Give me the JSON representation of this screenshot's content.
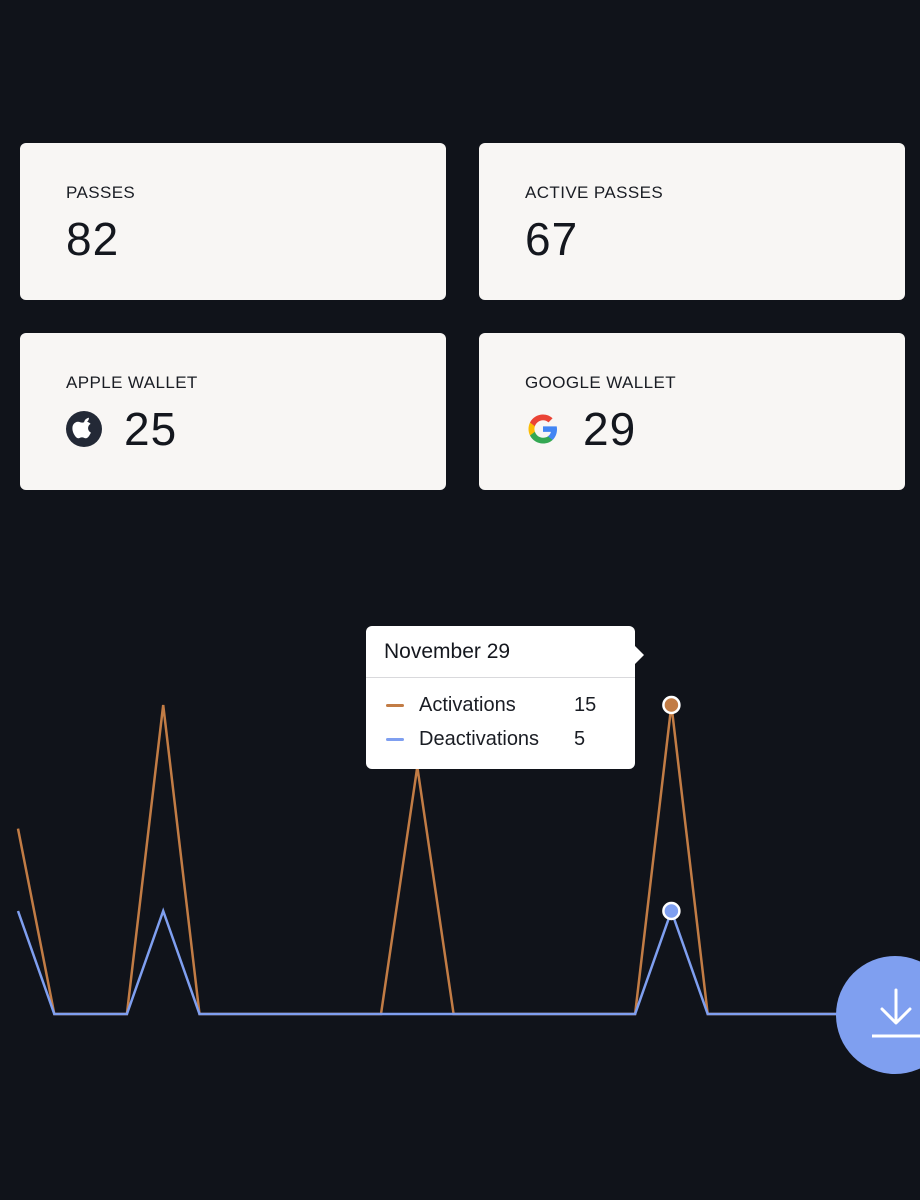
{
  "stats": {
    "passes": {
      "label": "PASSES",
      "value": "82"
    },
    "active_passes": {
      "label": "ACTIVE PASSES",
      "value": "67"
    },
    "apple_wallet": {
      "label": "APPLE WALLET",
      "value": "25",
      "icon": "apple-icon"
    },
    "google_wallet": {
      "label": "GOOGLE WALLET",
      "value": "29",
      "icon": "google-icon"
    }
  },
  "tooltip": {
    "date": "November 29",
    "rows": [
      {
        "label": "Activations",
        "value": "15",
        "color": "#c27c45"
      },
      {
        "label": "Deactivations",
        "value": "5",
        "color": "#7f9ff0"
      }
    ]
  },
  "chart_data": {
    "type": "line",
    "title": "",
    "xlabel": "",
    "ylabel": "",
    "x": [
      0,
      1,
      2,
      3,
      4,
      5,
      6,
      7,
      8,
      9,
      10,
      11,
      12,
      13,
      14,
      15,
      16,
      17,
      18,
      19,
      20,
      21,
      22,
      23,
      24
    ],
    "ylim": [
      0,
      18
    ],
    "series": [
      {
        "name": "Activations",
        "color": "#c27c45",
        "values": [
          9,
          0,
          0,
          0,
          15,
          0,
          0,
          0,
          0,
          0,
          0,
          12,
          0,
          0,
          0,
          0,
          0,
          0,
          15,
          0,
          0,
          0,
          0,
          0,
          0
        ]
      },
      {
        "name": "Deactivations",
        "color": "#7f9ff0",
        "values": [
          5,
          0,
          0,
          0,
          5,
          0,
          0,
          0,
          0,
          0,
          0,
          0,
          0,
          0,
          0,
          0,
          0,
          0,
          5,
          0,
          0,
          0,
          0,
          0,
          0
        ]
      }
    ],
    "highlight_index": 18,
    "grid": false,
    "legend": "tooltip"
  },
  "colors": {
    "background": "#10131a",
    "card": "#f8f6f4",
    "activations": "#c27c45",
    "deactivations": "#7f9ff0",
    "download_button": "#7f9ff0"
  },
  "download": {
    "icon": "download-icon"
  }
}
